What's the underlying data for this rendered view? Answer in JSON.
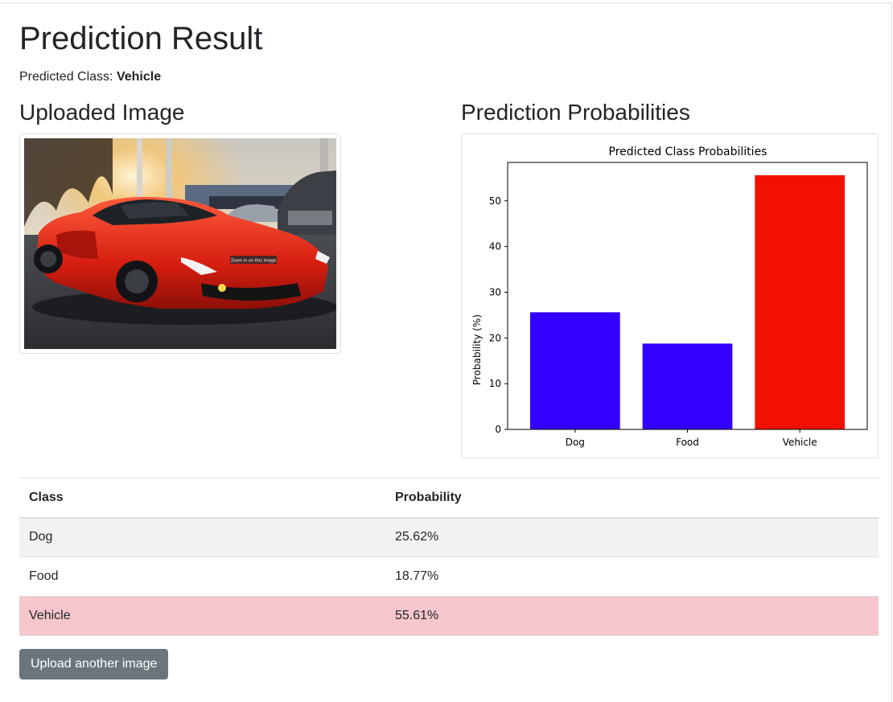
{
  "page": {
    "title": "Prediction Result",
    "predicted_label": "Predicted Class:",
    "predicted_value": "Vehicle"
  },
  "uploaded": {
    "heading": "Uploaded Image",
    "image_overlay_text": "Zoom in on this image"
  },
  "probabilities": {
    "heading": "Prediction Probabilities"
  },
  "chart_data": {
    "type": "bar",
    "title": "Predicted Class Probabilities",
    "xlabel": "",
    "ylabel": "Probability (%)",
    "categories": [
      "Dog",
      "Food",
      "Vehicle"
    ],
    "values": [
      25.62,
      18.77,
      55.61
    ],
    "colors": [
      "#3300ff",
      "#3300ff",
      "#f21100"
    ],
    "ylim": [
      0,
      58.4
    ],
    "yticks": [
      0,
      10,
      20,
      30,
      40,
      50
    ],
    "grid": false,
    "legend": false
  },
  "table": {
    "headers": [
      "Class",
      "Probability"
    ],
    "rows": [
      {
        "class": "Dog",
        "probability": "25.62%"
      },
      {
        "class": "Food",
        "probability": "18.77%"
      },
      {
        "class": "Vehicle",
        "probability": "55.61%"
      }
    ]
  },
  "actions": {
    "upload_another": "Upload another image"
  },
  "colors": {
    "highlight_row": "#f5c6cb",
    "striped_row": "#f2f2f2",
    "button_bg": "#6c757d"
  }
}
